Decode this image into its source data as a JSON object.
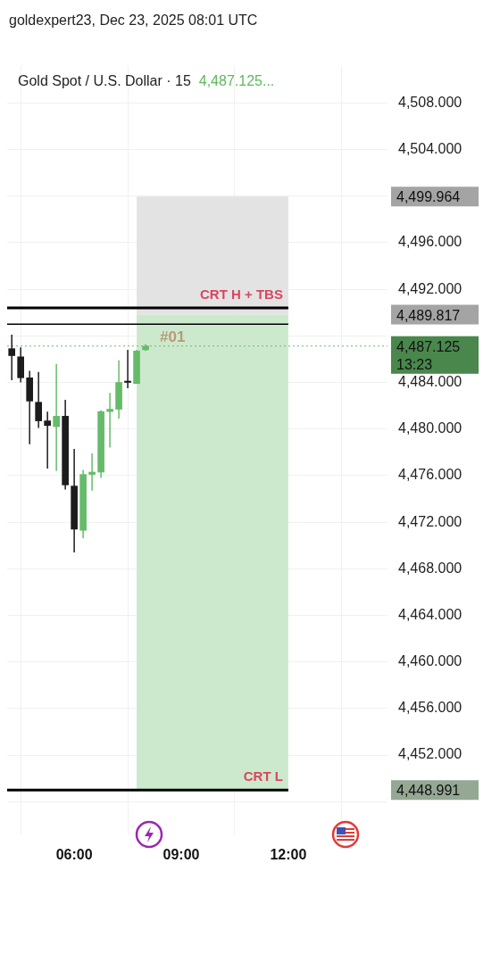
{
  "chart_data": {
    "type": "candlestick",
    "title": "Gold Spot / U.S. Dollar · 15",
    "subtitle": "goldexpert23, Dec 23, 2025 08:01 UTC",
    "x": [
      4.25,
      4.5,
      4.75,
      5.0,
      5.25,
      5.5,
      5.75,
      6.0,
      6.25,
      6.5,
      6.75,
      7.0,
      7.25,
      7.5,
      7.75,
      8.0
    ],
    "ohlc": [
      [
        4486.9,
        4488.1,
        4484.2,
        4486.3
      ],
      [
        4486.2,
        4487.0,
        4484.0,
        4484.4
      ],
      [
        4484.4,
        4485.0,
        4478.7,
        4482.4
      ],
      [
        4482.3,
        4484.9,
        4480.1,
        4480.7
      ],
      [
        4480.7,
        4481.5,
        4476.6,
        4480.3
      ],
      [
        4480.2,
        4485.6,
        4476.4,
        4481.1
      ],
      [
        4481.1,
        4482.5,
        4474.8,
        4475.2
      ],
      [
        4475.1,
        4478.3,
        4469.4,
        4471.4
      ],
      [
        4471.3,
        4476.5,
        4470.6,
        4476.1
      ],
      [
        4476.1,
        4477.9,
        4474.7,
        4476.3
      ],
      [
        4476.3,
        4481.6,
        4475.8,
        4481.5
      ],
      [
        4481.5,
        4483.1,
        4478.4,
        4481.7
      ],
      [
        4481.7,
        4485.9,
        4480.9,
        4484.0
      ],
      [
        4484.1,
        4486.8,
        4483.5,
        4484.0
      ],
      [
        4483.9,
        4486.8,
        4483.9,
        4486.7
      ],
      [
        4486.8,
        4487.3,
        4486.7,
        4487.125
      ]
    ],
    "colors": [
      "#1c1c1c",
      "#1c1c1c",
      "#1c1c1c",
      "#1c1c1c",
      "#1c1c1c",
      "#66bb6a",
      "#1c1c1c",
      "#1c1c1c",
      "#66bb6a",
      "#66bb6a",
      "#66bb6a",
      "#66bb6a",
      "#66bb6a",
      "#1c1c1c",
      "#66bb6a",
      "#66bb6a"
    ],
    "xlim": [
      4.12,
      14.78
    ],
    "xticks": [
      {
        "value": 6,
        "label": "06:00"
      },
      {
        "value": 9,
        "label": "09:00"
      },
      {
        "value": 12,
        "label": "12:00"
      }
    ],
    "ylim": [
      4445.2,
      4511.2
    ],
    "yticks": [
      {
        "value": 4448,
        "label": null
      },
      {
        "value": 4452,
        "label": "4,452.000"
      },
      {
        "value": 4456,
        "label": "4,456.000"
      },
      {
        "value": 4460,
        "label": "4,460.000"
      },
      {
        "value": 4464,
        "label": "4,464.000"
      },
      {
        "value": 4468,
        "label": "4,468.000"
      },
      {
        "value": 4472,
        "label": "4,472.000"
      },
      {
        "value": 4476,
        "label": "4,476.000"
      },
      {
        "value": 4480,
        "label": "4,480.000"
      },
      {
        "value": 4484,
        "label": "4,484.000"
      },
      {
        "value": 4488,
        "label": null
      },
      {
        "value": 4492,
        "label": "4,492.000"
      },
      {
        "value": 4496,
        "label": "4,496.000"
      },
      {
        "value": 4500,
        "label": null
      },
      {
        "value": 4504,
        "label": "4,504.000"
      },
      {
        "value": 4508,
        "label": "4,508.000"
      }
    ],
    "grid": true,
    "legend": false,
    "bands": [
      {
        "axis": "y",
        "from": 4489.817,
        "to": 4499.964,
        "color": "#e3e3e3",
        "label": null
      },
      {
        "axis": "y",
        "from": 4448.991,
        "to": 4489.817,
        "color": "#cde9cd",
        "label": null
      }
    ],
    "ref_lines": [
      {
        "axis": "y",
        "value": 4490.4,
        "label": "CRT H + TBS",
        "color": "#000000"
      },
      {
        "axis": "y",
        "value": 4489.0,
        "label": null,
        "color": "#000000"
      },
      {
        "axis": "y",
        "value": 4448.991,
        "label": "CRT L",
        "color": "#000000"
      },
      {
        "axis": "y",
        "value": 4487.125,
        "label": null,
        "color": "#66bb6a",
        "line_style": "dotted"
      }
    ],
    "annotations": [
      "4,487.125...",
      "#01",
      "4,499.964",
      "4,489.817",
      "4,487.125\n13:23",
      "4,448.991"
    ]
  }
}
